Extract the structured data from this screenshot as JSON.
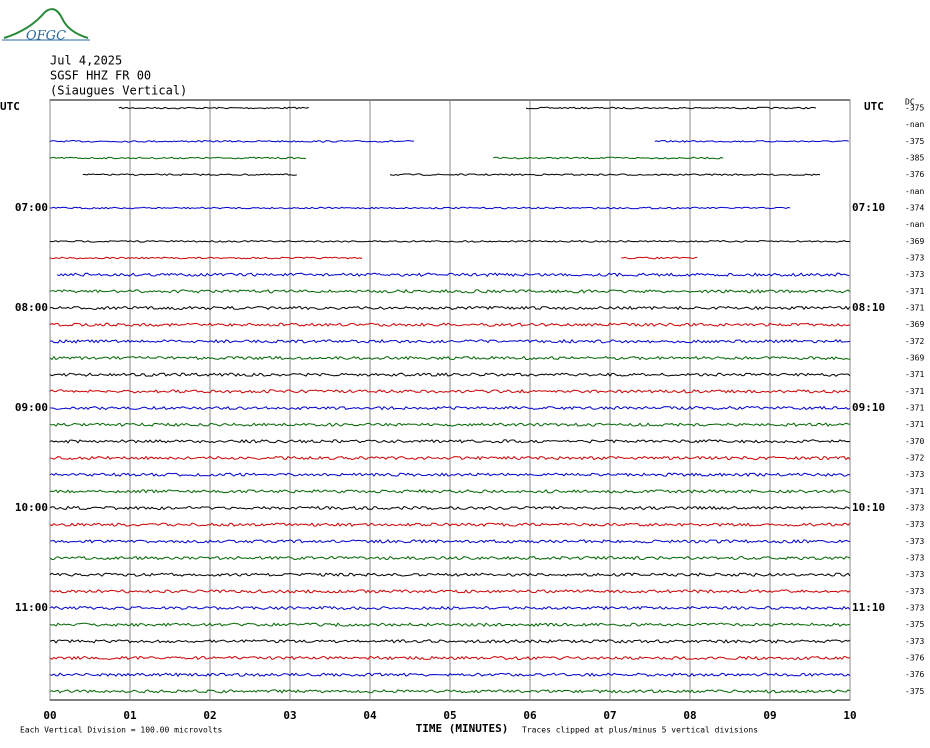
{
  "header": {
    "logo": "OFGC",
    "lines": [
      "Jul 4,2025",
      "SGSF HHZ FR 00",
      "(Siaugues Vertical)"
    ]
  },
  "left_title": "UTC",
  "right_title": "UTC",
  "dc_title": "DC",
  "left_labels": [
    "07:00",
    "08:00",
    "09:00",
    "10:00",
    "11:00"
  ],
  "right_labels": [
    "07:10",
    "08:10",
    "09:10",
    "10:10",
    "11:10"
  ],
  "x_axis": {
    "title": "TIME (MINUTES)",
    "xlim": [
      0,
      10
    ],
    "xticks": [
      {
        "value": 0,
        "label": "00"
      },
      {
        "value": 1,
        "label": "01"
      },
      {
        "value": 2,
        "label": "02"
      },
      {
        "value": 3,
        "label": "03"
      },
      {
        "value": 4,
        "label": "04"
      },
      {
        "value": 5,
        "label": "05"
      },
      {
        "value": 6,
        "label": "06"
      },
      {
        "value": 7,
        "label": "07"
      },
      {
        "value": 8,
        "label": "08"
      },
      {
        "value": 9,
        "label": "09"
      },
      {
        "value": 10,
        "label": "10"
      }
    ]
  },
  "footer": {
    "left": "Each Vertical Division =  100.00 microvolts",
    "right": "Traces clipped at plus/minus 5 vertical divisions"
  },
  "colors": [
    "#000000",
    "#cc0000",
    "#0000cc",
    "#006600"
  ],
  "rows": [
    {
      "dc": -375,
      "segments": [
        [
          0.86,
          3.26
        ],
        [
          5.95,
          9.59
        ]
      ]
    },
    {
      "dc": "-nan",
      "segments": []
    },
    {
      "dc": -375,
      "segments": [
        [
          0,
          4.56
        ],
        [
          7.56,
          10
        ]
      ]
    },
    {
      "dc": -385,
      "segments": [
        [
          0,
          3.21
        ],
        [
          5.54,
          8.44
        ]
      ]
    },
    {
      "dc": -376,
      "segments": [
        [
          0.41,
          3.09
        ],
        [
          4.25,
          9.63
        ]
      ]
    },
    {
      "dc": "-nan",
      "segments": []
    },
    {
      "dc": -374,
      "segments": [
        [
          0,
          9.25
        ]
      ]
    },
    {
      "dc": "-nan",
      "segments": []
    },
    {
      "dc": -369,
      "segments": [
        [
          0,
          10
        ]
      ]
    },
    {
      "dc": -373,
      "segments": [
        [
          0,
          3.9
        ],
        [
          7.14,
          8.1
        ]
      ]
    },
    {
      "dc": -373,
      "segments": [
        [
          0.09,
          10
        ]
      ]
    },
    {
      "dc": -371,
      "segments": [
        [
          0,
          10
        ]
      ]
    },
    {
      "dc": -371,
      "segments": [
        [
          0,
          10
        ]
      ]
    },
    {
      "dc": -369,
      "segments": [
        [
          0,
          10
        ]
      ]
    },
    {
      "dc": -372,
      "segments": [
        [
          0,
          10
        ]
      ]
    },
    {
      "dc": -369,
      "segments": [
        [
          0,
          10
        ]
      ]
    },
    {
      "dc": -371,
      "segments": [
        [
          0,
          10
        ]
      ]
    },
    {
      "dc": -371,
      "segments": [
        [
          0,
          10
        ]
      ]
    },
    {
      "dc": -371,
      "segments": [
        [
          0,
          10
        ]
      ]
    },
    {
      "dc": -371,
      "segments": [
        [
          0,
          10
        ]
      ]
    },
    {
      "dc": -370,
      "segments": [
        [
          0,
          10
        ]
      ]
    },
    {
      "dc": -372,
      "segments": [
        [
          0,
          10
        ]
      ]
    },
    {
      "dc": -373,
      "segments": [
        [
          0,
          10
        ]
      ]
    },
    {
      "dc": -371,
      "segments": [
        [
          0,
          10
        ]
      ]
    },
    {
      "dc": -373,
      "segments": [
        [
          0,
          10
        ]
      ]
    },
    {
      "dc": -373,
      "segments": [
        [
          0,
          10
        ]
      ]
    },
    {
      "dc": -373,
      "segments": [
        [
          0,
          10
        ]
      ]
    },
    {
      "dc": -373,
      "segments": [
        [
          0,
          10
        ]
      ]
    },
    {
      "dc": -373,
      "segments": [
        [
          0,
          10
        ]
      ]
    },
    {
      "dc": -373,
      "segments": [
        [
          0,
          10
        ]
      ]
    },
    {
      "dc": -373,
      "segments": [
        [
          0,
          10
        ]
      ]
    },
    {
      "dc": -375,
      "segments": [
        [
          0,
          10
        ]
      ]
    },
    {
      "dc": -373,
      "segments": [
        [
          0,
          10
        ]
      ]
    },
    {
      "dc": -376,
      "segments": [
        [
          0,
          10
        ]
      ]
    },
    {
      "dc": -376,
      "segments": [
        [
          0,
          10
        ]
      ]
    },
    {
      "dc": -375,
      "segments": [
        [
          0,
          10
        ]
      ]
    }
  ]
}
